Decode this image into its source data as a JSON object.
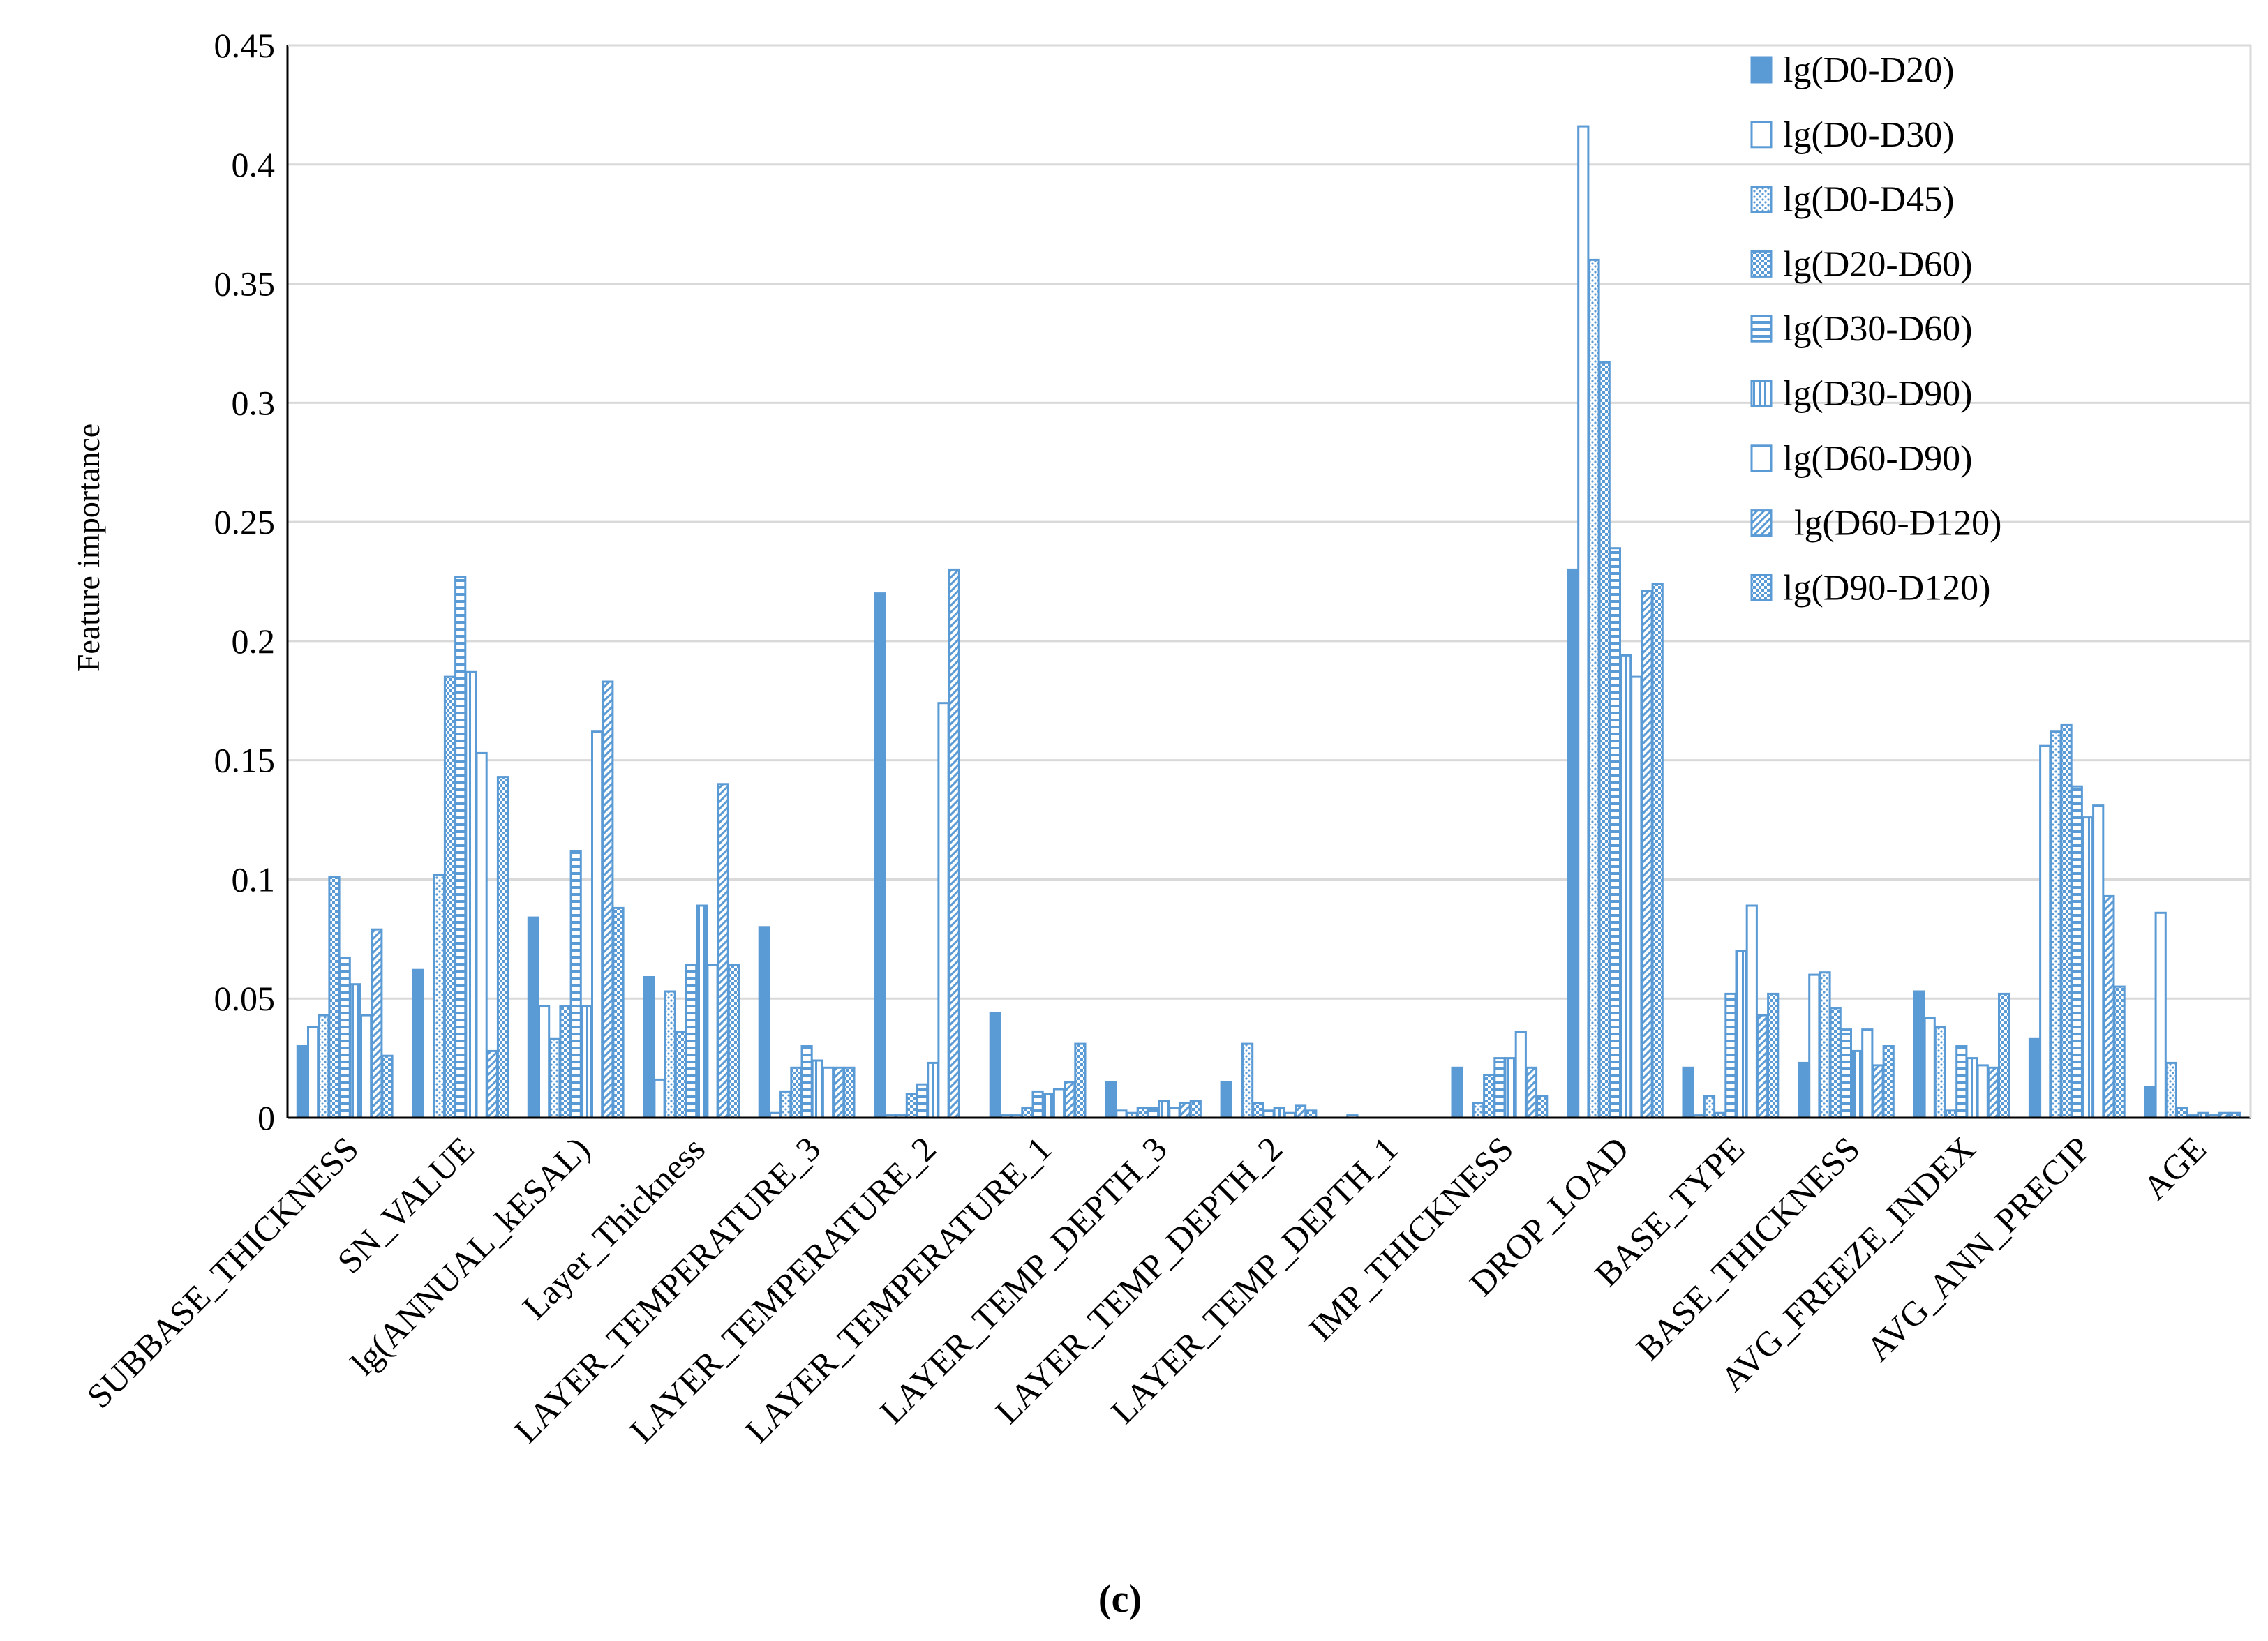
{
  "chart_data": {
    "type": "bar",
    "title": "",
    "xlabel": "",
    "ylabel": "Feature importance",
    "panel_label": "(c)",
    "ylim": [
      0,
      0.45
    ],
    "yticks": [
      "0",
      "0.05",
      "0.1",
      "0.15",
      "0.2",
      "0.25",
      "0.3",
      "0.35",
      "0.4",
      "0.45"
    ],
    "grid": true,
    "legend_position": "top-right",
    "categories": [
      "SUBBASE_THICKNESS",
      "SN_VALUE",
      "lg(ANNUAL_kESAL)",
      "Layer_Thickness",
      "LAYER_TEMPERATURE_3",
      "LAYER_TEMPERATURE_2",
      "LAYER_TEMPERATURE_1",
      "LAYER_TEMP_DEPTH_3",
      "LAYER_TEMP_DEPTH_2",
      "LAYER_TEMP_DEPTH_1",
      "IMP_THICKNESS",
      "DROP_LOAD",
      "BASE_TYPE",
      "BASE_THICKNESS",
      "AVG_FREEZE_INDEX",
      "AVG_ANN_PRECIP",
      "AGE"
    ],
    "series": [
      {
        "name": "lg(D0-D20)",
        "pattern": "solid",
        "values": [
          0.03,
          0.062,
          0.084,
          0.059,
          0.08,
          0.22,
          0.044,
          0.015,
          0.015,
          0.0,
          0.021,
          0.23,
          0.021,
          0.023,
          0.053,
          0.033,
          0.013
        ]
      },
      {
        "name": "lg(D0-D30)",
        "pattern": "hollow",
        "values": [
          0.038,
          0.0,
          0.047,
          0.016,
          0.002,
          0.001,
          0.001,
          0.003,
          0.0,
          0.001,
          0.0,
          0.416,
          0.001,
          0.06,
          0.042,
          0.156,
          0.086
        ]
      },
      {
        "name": "lg(D0-D45)",
        "pattern": "dots",
        "values": [
          0.043,
          0.102,
          0.033,
          0.053,
          0.011,
          0.001,
          0.001,
          0.002,
          0.031,
          0.0,
          0.006,
          0.36,
          0.009,
          0.061,
          0.038,
          0.162,
          0.023
        ]
      },
      {
        "name": "lg(D20-D60)",
        "pattern": "checker",
        "values": [
          0.101,
          0.185,
          0.047,
          0.036,
          0.021,
          0.01,
          0.004,
          0.004,
          0.006,
          0.0,
          0.018,
          0.317,
          0.002,
          0.046,
          0.003,
          0.165,
          0.004
        ]
      },
      {
        "name": "lg(D30-D60)",
        "pattern": "hdash",
        "values": [
          0.067,
          0.227,
          0.112,
          0.064,
          0.03,
          0.014,
          0.011,
          0.004,
          0.003,
          0.0,
          0.025,
          0.239,
          0.052,
          0.037,
          0.03,
          0.139,
          0.001
        ]
      },
      {
        "name": "lg(D30-D90)",
        "pattern": "vline",
        "values": [
          0.056,
          0.187,
          0.047,
          0.089,
          0.024,
          0.023,
          0.01,
          0.007,
          0.004,
          0.0,
          0.025,
          0.194,
          0.07,
          0.028,
          0.025,
          0.126,
          0.002
        ]
      },
      {
        "name": "lg(D60-D90)",
        "pattern": "hollow",
        "values": [
          0.043,
          0.153,
          0.162,
          0.064,
          0.021,
          0.174,
          0.012,
          0.004,
          0.002,
          0.0,
          0.036,
          0.185,
          0.089,
          0.037,
          0.022,
          0.131,
          0.001
        ]
      },
      {
        "name": "lg(D60-D120)",
        "pattern": "diag",
        "values": [
          0.079,
          0.028,
          0.183,
          0.14,
          0.021,
          0.23,
          0.015,
          0.006,
          0.005,
          0.0,
          0.021,
          0.221,
          0.043,
          0.022,
          0.021,
          0.093,
          0.002
        ]
      },
      {
        "name": "lg(D90-D120)",
        "pattern": "checker",
        "values": [
          0.026,
          0.143,
          0.088,
          0.064,
          0.021,
          0.0,
          0.031,
          0.007,
          0.003,
          0.0,
          0.009,
          0.224,
          0.052,
          0.03,
          0.052,
          0.055,
          0.002
        ]
      }
    ]
  },
  "colors": {
    "bar": "#5b9bd5",
    "grid": "#d9d9d9",
    "axis": "#000000"
  }
}
